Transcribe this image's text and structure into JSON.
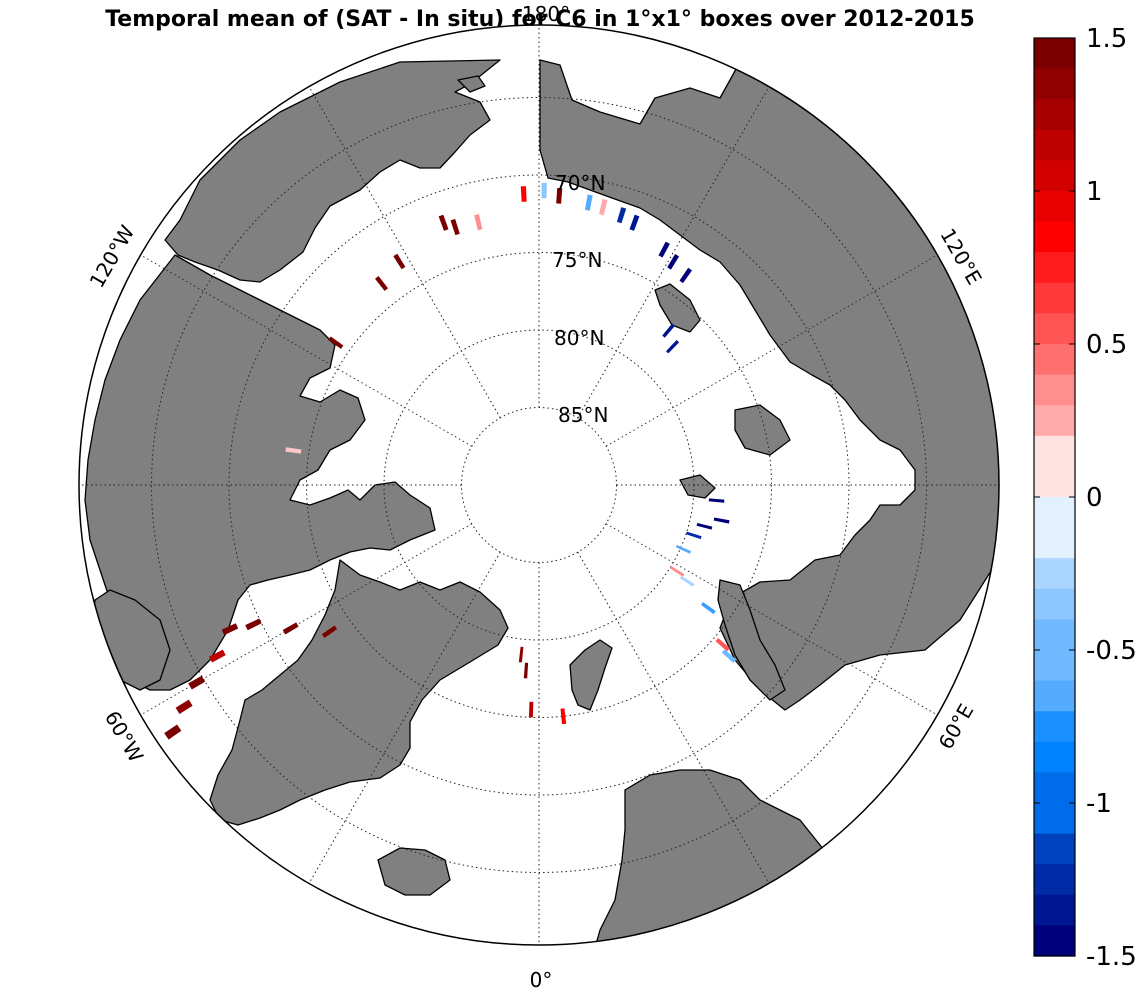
{
  "title": "Temporal mean of (SAT - In situ) for C6 in 1°x1° boxes over 2012-2015",
  "longitude_labels": [
    "180°",
    "120°E",
    "60°E",
    "0°",
    "60°W",
    "120°W"
  ],
  "latitude_labels": [
    "70°N",
    "75°N",
    "80°N",
    "85°N"
  ],
  "colorbar": {
    "min": -1.5,
    "max": 1.5,
    "tick_labels": [
      "1.5",
      "1",
      "0.5",
      "0",
      "-0.5",
      "-1",
      "-1.5"
    ],
    "levels": 30
  },
  "colors": {
    "land": "#808080",
    "coast": "#000000",
    "positive_max": "#7a0000",
    "negative_max": "#00007a",
    "neutral": "#ffffff"
  },
  "boxes": [
    {
      "lat": 71.3,
      "lon": 176,
      "value": 1.5
    },
    {
      "lat": 71.2,
      "lon": 183,
      "value": 0.9
    },
    {
      "lat": 71.0,
      "lon": 179,
      "value": -0.4
    },
    {
      "lat": 71.5,
      "lon": 170,
      "value": -0.6
    },
    {
      "lat": 71.6,
      "lon": 167,
      "value": 0.3
    },
    {
      "lat": 71.8,
      "lon": 163,
      "value": -1.3
    },
    {
      "lat": 72.0,
      "lon": 160,
      "value": -1.4
    },
    {
      "lat": 72.8,
      "lon": 152,
      "value": -1.5
    },
    {
      "lat": 73.2,
      "lon": 149,
      "value": -1.5
    },
    {
      "lat": 73.5,
      "lon": 145,
      "value": -1.5
    },
    {
      "lat": 77.0,
      "lon": 140,
      "value": -1.4
    },
    {
      "lat": 77.6,
      "lon": 136,
      "value": -1.4
    },
    {
      "lat": 72.0,
      "lon": 200,
      "value": 1.5
    },
    {
      "lat": 72.5,
      "lon": 198,
      "value": 1.5
    },
    {
      "lat": 72.6,
      "lon": 193,
      "value": 0.4
    },
    {
      "lat": 73.0,
      "lon": 212,
      "value": 1.5
    },
    {
      "lat": 73.5,
      "lon": 218,
      "value": 1.5
    },
    {
      "lat": 74.0,
      "lon": 235,
      "value": 1.5
    },
    {
      "lat": 78.5,
      "lon": 85,
      "value": -1.5
    },
    {
      "lat": 78.0,
      "lon": 79,
      "value": -1.5
    },
    {
      "lat": 79.0,
      "lon": 76,
      "value": -1.5
    },
    {
      "lat": 79.5,
      "lon": 72,
      "value": -1.3
    },
    {
      "lat": 79.8,
      "lon": 66,
      "value": -0.6
    },
    {
      "lat": 79.5,
      "lon": 58,
      "value": 0.4
    },
    {
      "lat": 78.6,
      "lon": 57,
      "value": -0.3
    },
    {
      "lat": 76.5,
      "lon": 54,
      "value": -0.7
    },
    {
      "lat": 74.3,
      "lon": 49,
      "value": 0.6
    },
    {
      "lat": 73.5,
      "lon": 48,
      "value": -0.5
    },
    {
      "lat": 79.0,
      "lon": 354,
      "value": 1.4
    },
    {
      "lat": 78.0,
      "lon": 356,
      "value": 1.5
    },
    {
      "lat": 75.5,
      "lon": 358,
      "value": 1.2
    },
    {
      "lat": 75.0,
      "lon": 6,
      "value": 0.9
    },
    {
      "lat": 73.5,
      "lon": 305,
      "value": 1.5
    },
    {
      "lat": 71.5,
      "lon": 300,
      "value": 1.5
    },
    {
      "lat": 69.5,
      "lon": 296,
      "value": 1.5
    },
    {
      "lat": 68.0,
      "lon": 295,
      "value": 1.5
    },
    {
      "lat": 66.5,
      "lon": 298,
      "value": 1.2
    },
    {
      "lat": 64.5,
      "lon": 300,
      "value": 1.5
    },
    {
      "lat": 63.0,
      "lon": 302,
      "value": 1.4
    },
    {
      "lat": 61.5,
      "lon": 304,
      "value": 1.5
    },
    {
      "lat": 74.0,
      "lon": 262,
      "value": 0.2
    }
  ]
}
